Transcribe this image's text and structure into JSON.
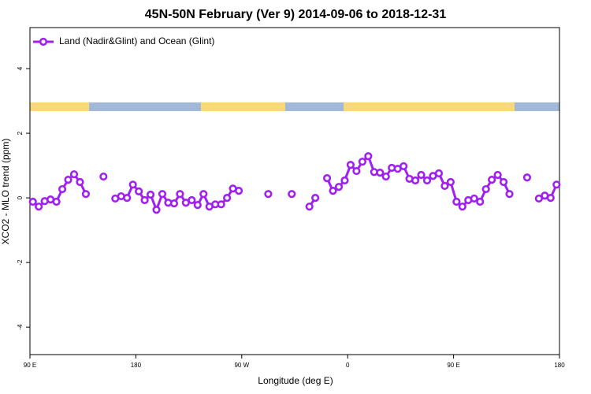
{
  "chart_data": {
    "type": "line",
    "title": "45N-50N February (Ver 9)   2014-09-06 to 2018-12-31",
    "xlabel": "Longitude (deg E)",
    "ylabel": "XCO2 - MLO trend (ppm)",
    "x": [
      92.5,
      97.5,
      102.5,
      107.5,
      112.5,
      117.5,
      122.5,
      127.5,
      132.5,
      137.5,
      142.5,
      147.5,
      152.5,
      157.5,
      162.5,
      167.5,
      172.5,
      177.5,
      182.5,
      187.5,
      192.5,
      197.5,
      202.5,
      207.5,
      212.5,
      217.5,
      222.5,
      227.5,
      232.5,
      237.5,
      242.5,
      247.5,
      252.5,
      257.5,
      262.5,
      267.5,
      272.5,
      277.5,
      282.5,
      287.5,
      292.5,
      297.5,
      302.5,
      307.5,
      312.5,
      317.5,
      322.5,
      327.5,
      332.5,
      337.5,
      342.5,
      347.5,
      352.5,
      357.5,
      362.5,
      367.5,
      372.5,
      377.5,
      382.5,
      387.5,
      392.5,
      397.5,
      402.5,
      407.5,
      412.5,
      417.5,
      422.5,
      427.5,
      432.5,
      437.5,
      442.5,
      447.5,
      452.5,
      457.5,
      462.5,
      467.5,
      472.5,
      477.5,
      482.5,
      487.5,
      492.5,
      497.5,
      502.5,
      507.5,
      512.5,
      517.5,
      522.5,
      527.5,
      532.5,
      537.5
    ],
    "series": [
      {
        "name": "Land (Nadir&Glint) and Ocean (Glint)",
        "color": "#a020f0",
        "values": [
          -0.12,
          -0.27,
          -0.1,
          -0.05,
          -0.12,
          0.27,
          0.56,
          0.73,
          0.49,
          0.12,
          null,
          null,
          0.66,
          null,
          -0.02,
          0.05,
          0.0,
          0.41,
          0.2,
          -0.07,
          0.1,
          -0.37,
          0.12,
          -0.15,
          -0.17,
          0.12,
          -0.15,
          -0.07,
          -0.22,
          0.12,
          -0.27,
          -0.2,
          -0.2,
          0.0,
          0.29,
          0.22,
          null,
          null,
          null,
          null,
          0.12,
          null,
          null,
          null,
          0.12,
          null,
          null,
          -0.27,
          0.0,
          null,
          0.61,
          0.22,
          0.34,
          0.54,
          1.02,
          0.83,
          1.12,
          1.29,
          0.8,
          0.78,
          0.66,
          0.93,
          0.9,
          0.98,
          0.59,
          0.54,
          0.71,
          0.54,
          0.68,
          0.76,
          0.37,
          0.49,
          -0.12,
          -0.27,
          -0.07,
          -0.02,
          -0.12,
          0.27,
          0.56,
          0.71,
          0.49,
          0.12,
          null,
          null,
          0.63,
          null,
          -0.02,
          0.07,
          0.0,
          0.41
        ]
      }
    ],
    "xlim": [
      90,
      540
    ],
    "xticks": [
      {
        "value": 90,
        "label": "90 E"
      },
      180,
      {
        "value": 270,
        "label": "90 W"
      },
      {
        "value": 360,
        "label": "0"
      },
      {
        "value": 450,
        "label": "90 E"
      },
      {
        "value": 540,
        "label": "180"
      }
    ],
    "ylim": [
      -4.85,
      5.27
    ],
    "yticks": [
      -4,
      -2,
      0,
      2,
      4
    ],
    "legend": "top-left"
  }
}
